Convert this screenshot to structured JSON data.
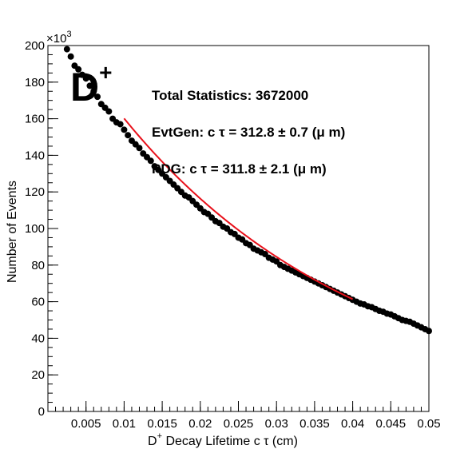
{
  "chart_data": {
    "type": "scatter",
    "title": "",
    "xlabel_prefix": "D",
    "xlabel_sup": "+",
    "xlabel_rest": " Decay Lifetime c τ (cm)",
    "ylabel": "Number of Events",
    "y_multiplier_base": "×10",
    "y_multiplier_exp": "3",
    "xlim": [
      0,
      0.05
    ],
    "ylim": [
      0,
      200
    ],
    "x_ticks": [
      0.005,
      0.01,
      0.015,
      0.02,
      0.025,
      0.03,
      0.035,
      0.04,
      0.045,
      0.05
    ],
    "x_tick_labels": [
      "0.005",
      "0.01",
      "0.015",
      "0.02",
      "0.025",
      "0.03",
      "0.035",
      "0.04",
      "0.045",
      "0.05"
    ],
    "y_ticks": [
      0,
      20,
      40,
      60,
      80,
      100,
      120,
      140,
      160,
      180,
      200
    ],
    "y_tick_labels": [
      "0",
      "20",
      "40",
      "60",
      "80",
      "100",
      "120",
      "140",
      "160",
      "180",
      "200"
    ],
    "particle_label": "D",
    "particle_label_sup": "+",
    "annotations": [
      "Total Statistics: 3672000",
      "EvtGen: c τ = 312.8 ± 0.7 (μ m)",
      "PDG: c τ = 311.8 ± 2.1 (μ m)"
    ],
    "series": [
      {
        "kind": "data",
        "marker": "circle",
        "color": "#000000",
        "x": [
          0.0025,
          0.003,
          0.0035,
          0.004,
          0.0045,
          0.005,
          0.0055,
          0.006,
          0.0065,
          0.007,
          0.0075,
          0.008,
          0.0085,
          0.009,
          0.0095,
          0.01,
          0.0105,
          0.011,
          0.0115,
          0.012,
          0.0125,
          0.013,
          0.0135,
          0.014,
          0.0145,
          0.015,
          0.0155,
          0.016,
          0.0165,
          0.017,
          0.0175,
          0.018,
          0.0185,
          0.019,
          0.0195,
          0.02,
          0.0205,
          0.021,
          0.0215,
          0.022,
          0.0225,
          0.023,
          0.0235,
          0.024,
          0.0245,
          0.025,
          0.0255,
          0.026,
          0.0265,
          0.027,
          0.0275,
          0.028,
          0.0285,
          0.029,
          0.0295,
          0.03,
          0.0305,
          0.031,
          0.0315,
          0.032,
          0.0325,
          0.033,
          0.0335,
          0.034,
          0.0345,
          0.035,
          0.0355,
          0.036,
          0.0365,
          0.037,
          0.0375,
          0.038,
          0.0385,
          0.039,
          0.0395,
          0.04,
          0.0405,
          0.041,
          0.0415,
          0.042,
          0.0425,
          0.043,
          0.0435,
          0.044,
          0.0445,
          0.045,
          0.0455,
          0.046,
          0.0465,
          0.047,
          0.0475,
          0.048,
          0.0485,
          0.049,
          0.0495,
          0.05
        ],
        "y": [
          198,
          194,
          189,
          187,
          184,
          182,
          178,
          175,
          172,
          168,
          166,
          164,
          160,
          158,
          157,
          154,
          151,
          148,
          146,
          144,
          141,
          139,
          137,
          134,
          132,
          130,
          128,
          126,
          124,
          122,
          120,
          118,
          117,
          115,
          113,
          111,
          109,
          108,
          106,
          104,
          103,
          101,
          100,
          98,
          97,
          95,
          94,
          92,
          91,
          89,
          88,
          87,
          86,
          84,
          83,
          82,
          80,
          79,
          78,
          77,
          76,
          75,
          74,
          73,
          72,
          71,
          70,
          69,
          68,
          67,
          66,
          65,
          64,
          63,
          62,
          61,
          60,
          59,
          58.5,
          57.5,
          57,
          56,
          55,
          54.5,
          53.5,
          53,
          52,
          51,
          50,
          49.5,
          49,
          48,
          47,
          46,
          45,
          44
        ]
      },
      {
        "kind": "fit",
        "color": "#e8101a",
        "x_range": [
          0.01,
          0.04
        ],
        "model": "exponential",
        "amplitude": 220.5,
        "decay_length": 0.03128
      }
    ]
  }
}
